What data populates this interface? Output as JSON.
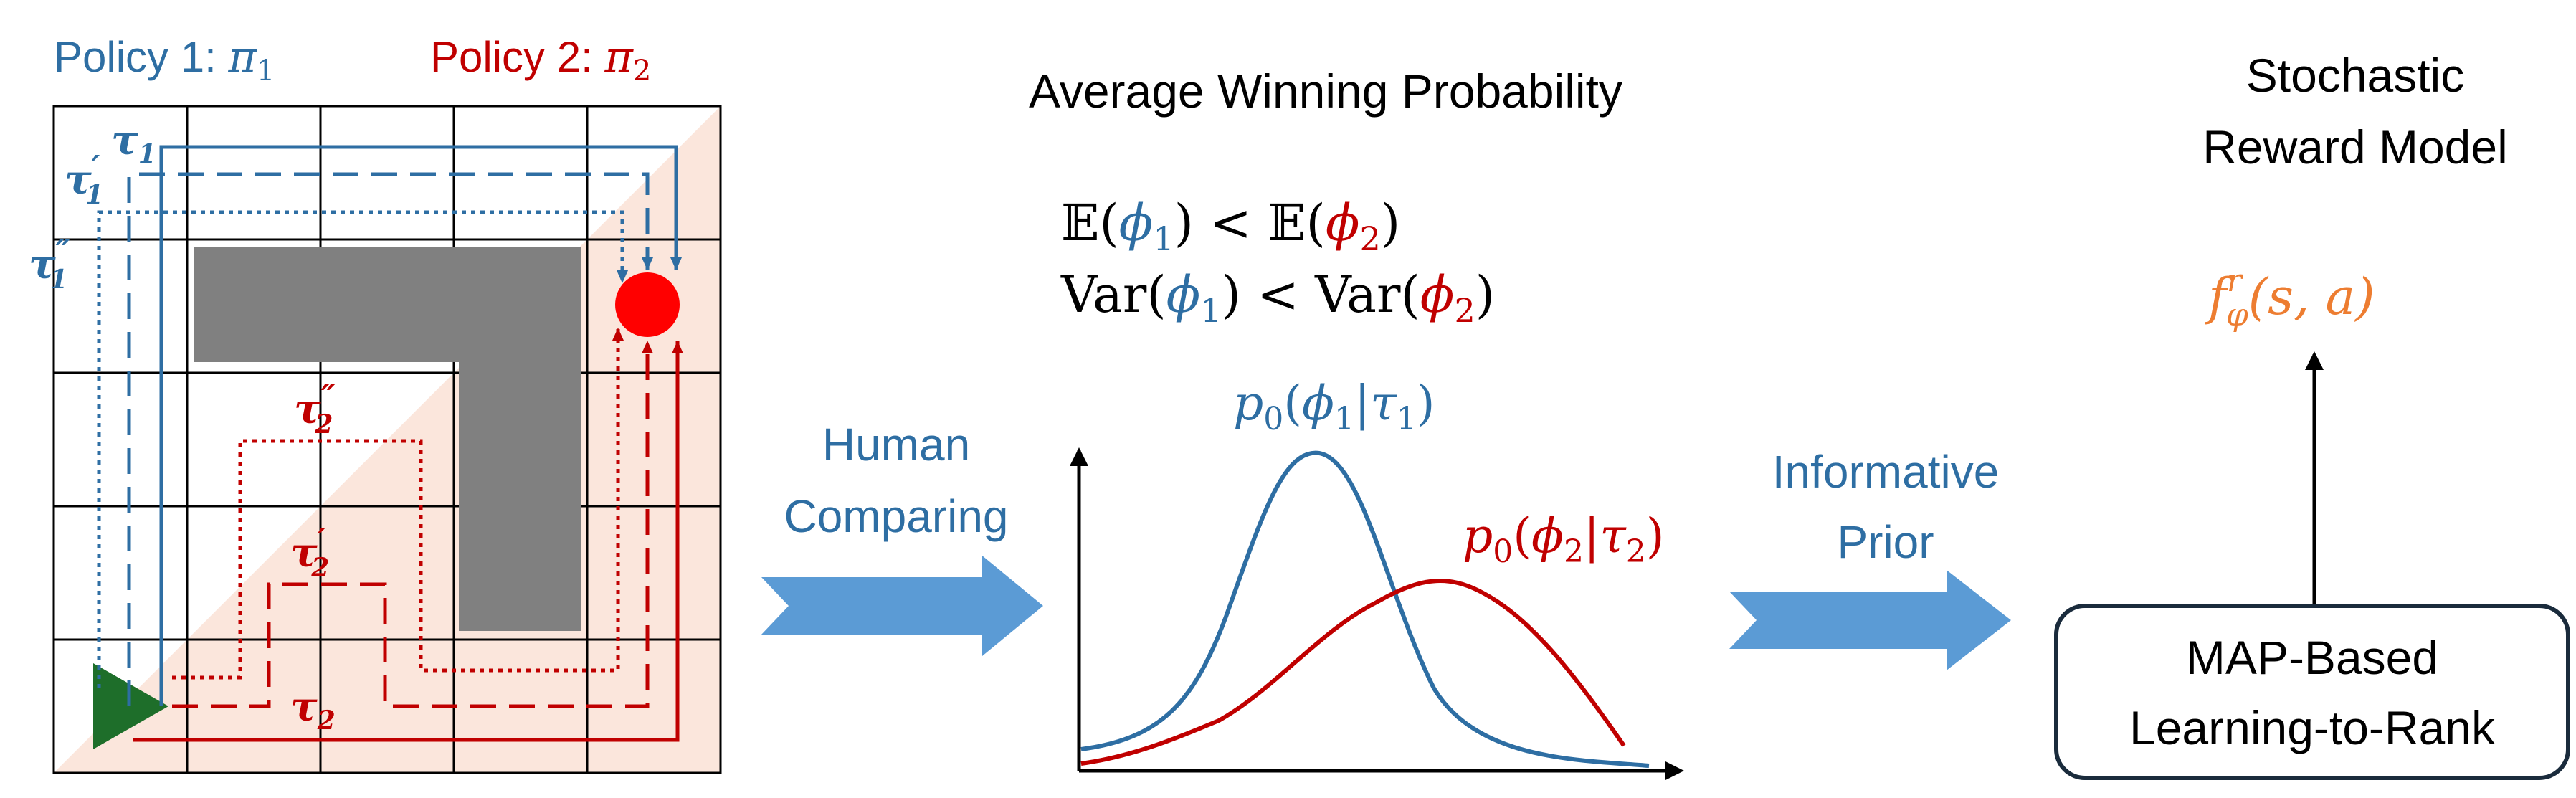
{
  "colors": {
    "blue": "#2e6ea3",
    "red": "#c00000",
    "arrow_blue": "#5b9bd5",
    "obstacle": "#808080",
    "start": "#1e6e2a",
    "goal": "#ff0000",
    "shade": "#fbe6dc",
    "orange": "#ed7d31"
  },
  "legend": {
    "policy1_prefix": "Policy 1: ",
    "policy1_pi": "π",
    "policy1_sub": "1",
    "policy2_prefix": "Policy 2: ",
    "policy2_pi": "π",
    "policy2_sub": "2"
  },
  "trajectory_labels": {
    "tau1": {
      "sym": "τ",
      "sub": "1",
      "prime": ""
    },
    "tau1p": {
      "sym": "τ",
      "sub": "1",
      "prime": "′"
    },
    "tau1pp": {
      "sym": "τ",
      "sub": "1",
      "prime": "″"
    },
    "tau2": {
      "sym": "τ",
      "sub": "2",
      "prime": ""
    },
    "tau2p": {
      "sym": "τ",
      "sub": "2",
      "prime": "′"
    },
    "tau2pp": {
      "sym": "τ",
      "sub": "2",
      "prime": "″"
    }
  },
  "arrows": {
    "human_line1": "Human",
    "human_line2": "Comparing",
    "prior_line1": "Informative",
    "prior_line2": "Prior"
  },
  "middle": {
    "title": "Average Winning Probability",
    "eq1": {
      "op": "𝔼(",
      "phi1": "ϕ",
      "sub1": "1",
      "mid": ") < 𝔼(",
      "phi2": "ϕ",
      "sub2": "2",
      "end": ")"
    },
    "eq2": {
      "op": "Var(",
      "phi1": "ϕ",
      "sub1": "1",
      "mid": ") < Var(",
      "phi2": "ϕ",
      "sub2": "2",
      "end": ")"
    },
    "dist1": {
      "p": "p",
      "p_sub": "0",
      "open": "(",
      "phi": "ϕ",
      "phi_sub": "1",
      "bar": "|",
      "tau": "τ",
      "tau_sub": "1",
      "close": ")"
    },
    "dist2": {
      "p": "p",
      "p_sub": "0",
      "open": "(",
      "phi": "ϕ",
      "phi_sub": "2",
      "bar": "|",
      "tau": "τ",
      "tau_sub": "2",
      "close": ")"
    }
  },
  "right": {
    "title_line1": "Stochastic",
    "title_line2": "Reward Model",
    "formula": {
      "f": "f",
      "sub": "φ",
      "sup": "r",
      "args": "(s, a)"
    },
    "box_line1": "MAP-Based",
    "box_line2": "Learning-to-Rank"
  }
}
